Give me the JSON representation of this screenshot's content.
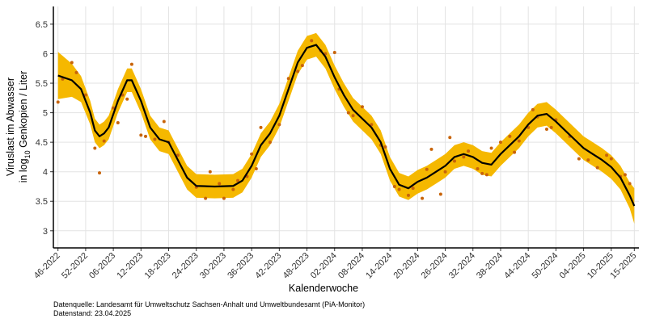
{
  "chart_data": {
    "type": "line",
    "xlabel": "Kalenderwoche",
    "ylabel": {
      "line1": "Viruslast im Abwasser",
      "line2": "in  log",
      "subscript": "10",
      "line2_end": " Genkopien / Liter"
    },
    "source": [
      "Datenquelle: Landesamt für Umweltschutz Sachsen-Anhalt und Umweltbundesamt (PiA-Monitor)",
      "Datenstand: 23.04.2025"
    ],
    "xlim": [
      -1,
      126
    ],
    "xticks": [
      {
        "value": 0,
        "label": "46-2022"
      },
      {
        "value": 6,
        "label": "52-2022"
      },
      {
        "value": 12,
        "label": "06-2023"
      },
      {
        "value": 18,
        "label": "12-2023"
      },
      {
        "value": 24,
        "label": "18-2023"
      },
      {
        "value": 30,
        "label": "24-2023"
      },
      {
        "value": 36,
        "label": "30-2023"
      },
      {
        "value": 42,
        "label": "36-2023"
      },
      {
        "value": 48,
        "label": "42-2023"
      },
      {
        "value": 54,
        "label": "48-2023"
      },
      {
        "value": 60,
        "label": "02-2024"
      },
      {
        "value": 66,
        "label": "08-2024"
      },
      {
        "value": 72,
        "label": "14-2024"
      },
      {
        "value": 78,
        "label": "20-2024"
      },
      {
        "value": 84,
        "label": "26-2024"
      },
      {
        "value": 90,
        "label": "32-2024"
      },
      {
        "value": 96,
        "label": "38-2024"
      },
      {
        "value": 102,
        "label": "44-2024"
      },
      {
        "value": 108,
        "label": "50-2024"
      },
      {
        "value": 114,
        "label": "04-2025"
      },
      {
        "value": 120,
        "label": "10-2025"
      },
      {
        "value": 125,
        "label": "15-2025"
      }
    ],
    "ylim": [
      2.71,
      6.8
    ],
    "yticks": [
      3,
      3.5,
      4,
      4.5,
      5,
      5.5,
      6,
      6.5
    ],
    "grid": true,
    "x": [
      0,
      3,
      5,
      7,
      8,
      9,
      10,
      11,
      13,
      15,
      16,
      18,
      20,
      22,
      24,
      26,
      28,
      30,
      34,
      38,
      40,
      42,
      44,
      46,
      48,
      50,
      52,
      54,
      56,
      58,
      60,
      62,
      64,
      66,
      68,
      70,
      72,
      74,
      76,
      78,
      80,
      82,
      84,
      86,
      88,
      90,
      92,
      94,
      96,
      98,
      100,
      102,
      104,
      106,
      108,
      110,
      112,
      114,
      116,
      118,
      120,
      122,
      124,
      125
    ],
    "line": {
      "color": "#000000",
      "values": [
        5.63,
        5.55,
        5.4,
        5.0,
        4.7,
        4.6,
        4.65,
        4.75,
        5.2,
        5.55,
        5.55,
        5.2,
        4.75,
        4.55,
        4.5,
        4.2,
        3.9,
        3.76,
        3.75,
        3.76,
        3.85,
        4.1,
        4.45,
        4.65,
        4.95,
        5.4,
        5.85,
        6.1,
        6.15,
        5.95,
        5.6,
        5.3,
        5.05,
        4.9,
        4.75,
        4.5,
        4.05,
        3.78,
        3.72,
        3.83,
        3.9,
        4.0,
        4.1,
        4.25,
        4.3,
        4.25,
        4.15,
        4.12,
        4.3,
        4.45,
        4.6,
        4.8,
        4.95,
        4.98,
        4.85,
        4.7,
        4.55,
        4.4,
        4.3,
        4.2,
        4.08,
        3.9,
        3.6,
        3.42
      ]
    },
    "band": {
      "color": "#f5b800",
      "lower": [
        5.23,
        5.27,
        5.18,
        4.8,
        4.5,
        4.4,
        4.45,
        4.55,
        5.0,
        5.35,
        5.35,
        5.0,
        4.55,
        4.35,
        4.3,
        4.0,
        3.7,
        3.56,
        3.55,
        3.56,
        3.65,
        3.9,
        4.25,
        4.45,
        4.75,
        5.2,
        5.65,
        5.9,
        5.95,
        5.75,
        5.4,
        5.1,
        4.85,
        4.7,
        4.55,
        4.3,
        3.85,
        3.58,
        3.52,
        3.63,
        3.7,
        3.8,
        3.9,
        4.05,
        4.1,
        4.05,
        3.95,
        3.92,
        4.1,
        4.25,
        4.4,
        4.6,
        4.75,
        4.78,
        4.65,
        4.5,
        4.35,
        4.2,
        4.1,
        4.0,
        3.88,
        3.7,
        3.38,
        3.12
      ],
      "upper": [
        6.03,
        5.83,
        5.62,
        5.2,
        4.9,
        4.8,
        4.85,
        4.95,
        5.4,
        5.75,
        5.75,
        5.4,
        4.95,
        4.75,
        4.7,
        4.4,
        4.1,
        3.96,
        3.95,
        3.96,
        4.05,
        4.3,
        4.65,
        4.85,
        5.15,
        5.6,
        6.05,
        6.3,
        6.35,
        6.15,
        5.8,
        5.5,
        5.25,
        5.1,
        4.95,
        4.7,
        4.25,
        3.98,
        3.92,
        4.03,
        4.1,
        4.2,
        4.3,
        4.45,
        4.5,
        4.45,
        4.35,
        4.32,
        4.5,
        4.65,
        4.8,
        5.0,
        5.15,
        5.18,
        5.05,
        4.9,
        4.75,
        4.6,
        4.5,
        4.4,
        4.28,
        4.1,
        3.82,
        3.72
      ]
    },
    "points": {
      "color": "#c8640a",
      "x": [
        0,
        1,
        3,
        4,
        6,
        8,
        9,
        10,
        12,
        13,
        14,
        15,
        16,
        18,
        19,
        21,
        23,
        24,
        26,
        30,
        32,
        33,
        35,
        36,
        38,
        39,
        41,
        42,
        43,
        44,
        46,
        48,
        50,
        52,
        53,
        55,
        57,
        58,
        60,
        61,
        63,
        64,
        66,
        68,
        70,
        71,
        73,
        74,
        76,
        77,
        79,
        80,
        81,
        83,
        84,
        85,
        86,
        88,
        89,
        91,
        92,
        93,
        94,
        96,
        98,
        99,
        100,
        102,
        103,
        104,
        106,
        107,
        108,
        111,
        113,
        115,
        117,
        119,
        120,
        122,
        123,
        124
      ],
      "values": [
        5.18,
        5.57,
        5.85,
        5.68,
        5.3,
        4.4,
        3.98,
        4.52,
        5.08,
        4.83,
        5.3,
        5.23,
        5.82,
        4.62,
        4.6,
        4.55,
        4.85,
        4.5,
        4.28,
        3.74,
        3.55,
        4.0,
        3.8,
        3.55,
        3.7,
        3.85,
        3.92,
        4.3,
        4.05,
        4.75,
        4.5,
        4.8,
        5.58,
        5.7,
        5.8,
        6.22,
        6.05,
        6.0,
        6.02,
        5.4,
        5.0,
        4.95,
        5.1,
        4.8,
        4.45,
        4.42,
        3.75,
        3.7,
        3.6,
        3.72,
        3.55,
        4.04,
        4.38,
        3.62,
        4.0,
        4.58,
        4.18,
        4.25,
        4.35,
        4.05,
        3.97,
        3.95,
        4.4,
        4.5,
        4.6,
        4.33,
        4.52,
        4.75,
        5.05,
        4.93,
        4.72,
        4.75,
        4.88,
        4.6,
        4.22,
        4.2,
        4.07,
        4.28,
        4.22,
        3.92,
        3.95,
        3.8
      ]
    }
  }
}
